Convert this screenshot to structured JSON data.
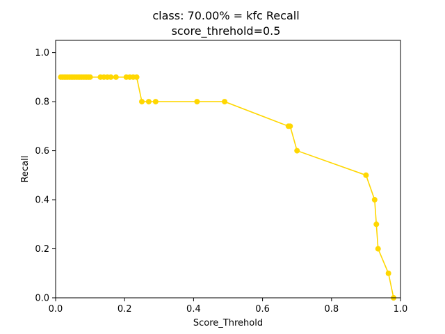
{
  "chart_data": {
    "type": "line",
    "title": "class: 70.00% = kfc Recall",
    "subtitle": "score_threhold=0.5",
    "xlabel": "Score_Threhold",
    "ylabel": "Recall",
    "xlim": [
      0.0,
      1.0
    ],
    "ylim": [
      0.0,
      1.05
    ],
    "xticks": [
      0.0,
      0.2,
      0.4,
      0.6,
      0.8,
      1.0
    ],
    "xtick_labels": [
      "0.0",
      "0.2",
      "0.4",
      "0.6",
      "0.8",
      "1.0"
    ],
    "yticks": [
      0.0,
      0.2,
      0.4,
      0.6,
      0.8,
      1.0
    ],
    "ytick_labels": [
      "0.0",
      "0.2",
      "0.4",
      "0.6",
      "0.8",
      "1.0"
    ],
    "grid": false,
    "legend": "none",
    "series": [
      {
        "color": "#ffd700",
        "marker": "circle",
        "x": [
          0.015,
          0.02,
          0.025,
          0.03,
          0.035,
          0.04,
          0.045,
          0.05,
          0.055,
          0.06,
          0.065,
          0.07,
          0.075,
          0.08,
          0.085,
          0.09,
          0.095,
          0.1,
          0.13,
          0.14,
          0.15,
          0.16,
          0.175,
          0.205,
          0.215,
          0.225,
          0.235,
          0.25,
          0.27,
          0.29,
          0.41,
          0.49,
          0.675,
          0.68,
          0.7,
          0.9,
          0.925,
          0.93,
          0.935,
          0.965,
          0.98
        ],
        "y": [
          0.9,
          0.9,
          0.9,
          0.9,
          0.9,
          0.9,
          0.9,
          0.9,
          0.9,
          0.9,
          0.9,
          0.9,
          0.9,
          0.9,
          0.9,
          0.9,
          0.9,
          0.9,
          0.9,
          0.9,
          0.9,
          0.9,
          0.9,
          0.9,
          0.9,
          0.9,
          0.9,
          0.8,
          0.8,
          0.8,
          0.8,
          0.8,
          0.7,
          0.7,
          0.6,
          0.5,
          0.4,
          0.3,
          0.2,
          0.1,
          0.0
        ]
      }
    ]
  }
}
